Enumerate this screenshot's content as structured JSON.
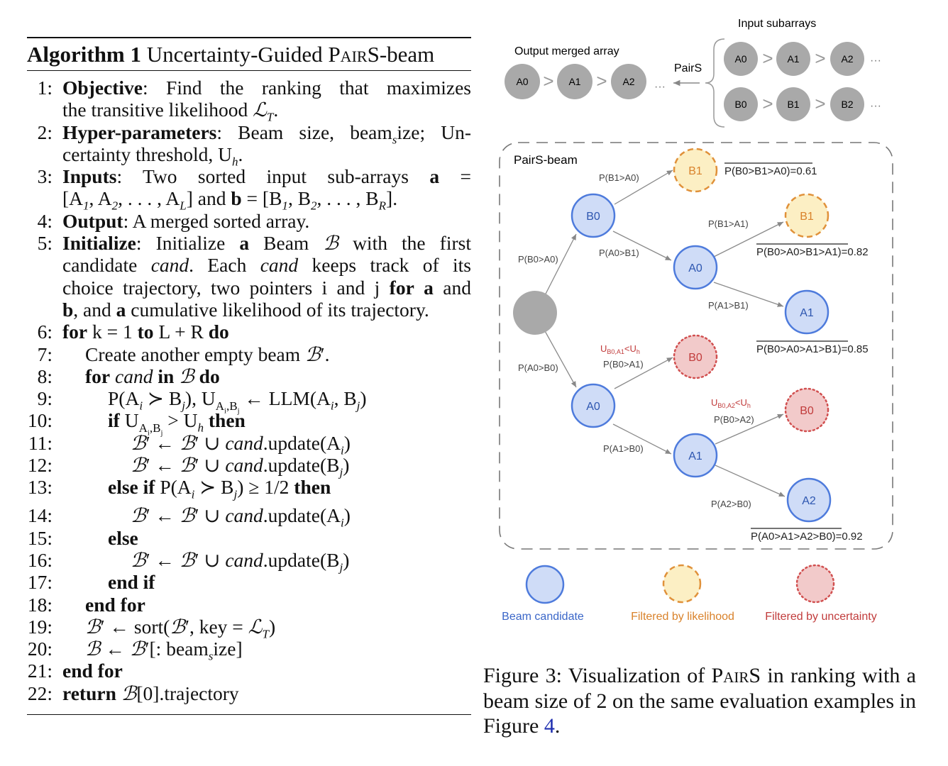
{
  "algorithm": {
    "label": "Algorithm 1",
    "title_pre": "Uncertainty-Guided ",
    "title_sc": "PairS",
    "title_post": "-beam",
    "lines": [
      {
        "no": "1:",
        "text": "Objective: Find the ranking that maximizes"
      },
      {
        "no": "",
        "text": "the transitive likelihood ℒ_T."
      },
      {
        "no": "2:",
        "text": "Hyper-parameters: Beam size, beam_size; Un-"
      },
      {
        "no": "",
        "text": "certainty threshold, U_h."
      },
      {
        "no": "3:",
        "text": "Inputs: Two sorted input sub-arrays a ="
      },
      {
        "no": "",
        "text": "[A_1, A_2, . . . , A_L] and b = [B_1, B_2, . . . , B_R]."
      },
      {
        "no": "4:",
        "text": "Output: A merged sorted array."
      },
      {
        "no": "5:",
        "text": "Initialize: Initialize a Beam ℬ with the first"
      },
      {
        "no": "",
        "text": "candidate cand. Each cand keeps track of its"
      },
      {
        "no": "",
        "text": "choice trajectory, two pointers i and j for a and"
      },
      {
        "no": "",
        "text": "b, and a cumulative likelihood of its trajectory."
      },
      {
        "no": "6:",
        "text": "for k = 1 to L + R do"
      },
      {
        "no": "7:",
        "text": "Create another empty beam ℬ′."
      },
      {
        "no": "8:",
        "text": "for cand in ℬ do"
      },
      {
        "no": "9:",
        "text": "P(A_i ≻ B_j), U_{A_i,B_j} ← LLM(A_i, B_j)"
      },
      {
        "no": "10:",
        "text": "if U_{A_i,B_j} > U_h then"
      },
      {
        "no": "11:",
        "text": "ℬ′ ← ℬ′ ∪ cand.update(A_i)"
      },
      {
        "no": "12:",
        "text": "ℬ′ ← ℬ′ ∪ cand.update(B_j)"
      },
      {
        "no": "13:",
        "text": "else if P(A_i ≻ B_j) ≥ 1/2 then"
      },
      {
        "no": "14:",
        "text": "ℬ′ ← ℬ′ ∪ cand.update(A_i)"
      },
      {
        "no": "15:",
        "text": "else"
      },
      {
        "no": "16:",
        "text": "ℬ′ ← ℬ′ ∪ cand.update(B_j)"
      },
      {
        "no": "17:",
        "text": "end if"
      },
      {
        "no": "18:",
        "text": "end for"
      },
      {
        "no": "19:",
        "text": "ℬ′ ← sort(ℬ′, key = ℒ_T)"
      },
      {
        "no": "20:",
        "text": "ℬ ← ℬ′[: beam_size]"
      },
      {
        "no": "21:",
        "text": "end for"
      },
      {
        "no": "22:",
        "text": "return ℬ[0].trajectory"
      }
    ]
  },
  "figure": {
    "top": {
      "output_label": "Output merged array",
      "input_label": "Input subarrays",
      "pairs_label": "PairS",
      "output_nodes": [
        "A0",
        "A1",
        "A2"
      ],
      "input_a_nodes": [
        "A0",
        "A1",
        "A2"
      ],
      "input_b_nodes": [
        "B0",
        "B1",
        "B2"
      ],
      "gt": ">",
      "ellipsis": "···"
    },
    "beam": {
      "title": "PairS-beam",
      "nodes": {
        "b0": "B0",
        "a0_up": "A0",
        "b1_top": "B1",
        "b1_mid": "B1",
        "a1_mid": "A1",
        "a0_low": "A0",
        "b0_unc1": "B0",
        "a1_low": "A1",
        "b0_unc2": "B0",
        "a2": "A2"
      },
      "edge_labels": {
        "root_b0": "P(B0>A0)",
        "root_a0": "P(A0>B0)",
        "b0_b1": "P(B1>A0)",
        "b0_a0": "P(A0>B1)",
        "a0_b1": "P(B1>A1)",
        "a0_a1": "P(A1>B1)",
        "a0l_b0": "P(B0>A1)",
        "a0l_a1": "P(A1>B0)",
        "a1_b0": "P(B0>A2)",
        "a1_a2": "P(A2>B0)"
      },
      "uncertainty_labels": {
        "u1_main": "U",
        "u1_sub": "B0,A1",
        "u1_rest": "<U",
        "u1_h": "h",
        "u2_main": "U",
        "u2_sub": "B0,A2",
        "u2_rest": "<U",
        "u2_h": "h"
      },
      "scores": {
        "s1": "P(B0>B1>A0)=0.61",
        "s2": "P(B0>A0>B1>A1)=0.82",
        "s3": "P(B0>A0>A1>B1)=0.85",
        "s4": "P(A0>A1>A2>B0)=0.92"
      }
    },
    "legend": {
      "beam": "Beam candidate",
      "likelihood": "Filtered by likelihood",
      "uncertainty": "Filtered by uncertainty"
    },
    "colors": {
      "gray_node": "#a9a9a9",
      "blue_fill": "#cfdcf7",
      "blue_stroke": "#4e7bdc",
      "orange_fill": "#fcefc4",
      "orange_stroke": "#e0913a",
      "red_fill": "#f2caca",
      "red_stroke": "#d15050"
    }
  },
  "caption": {
    "pre": "Figure 3: Visualization of ",
    "sc": "PairS",
    "mid": " in ranking with a beam size of 2 on the same evaluation examples in Figure ",
    "ref": "4",
    "post": "."
  }
}
